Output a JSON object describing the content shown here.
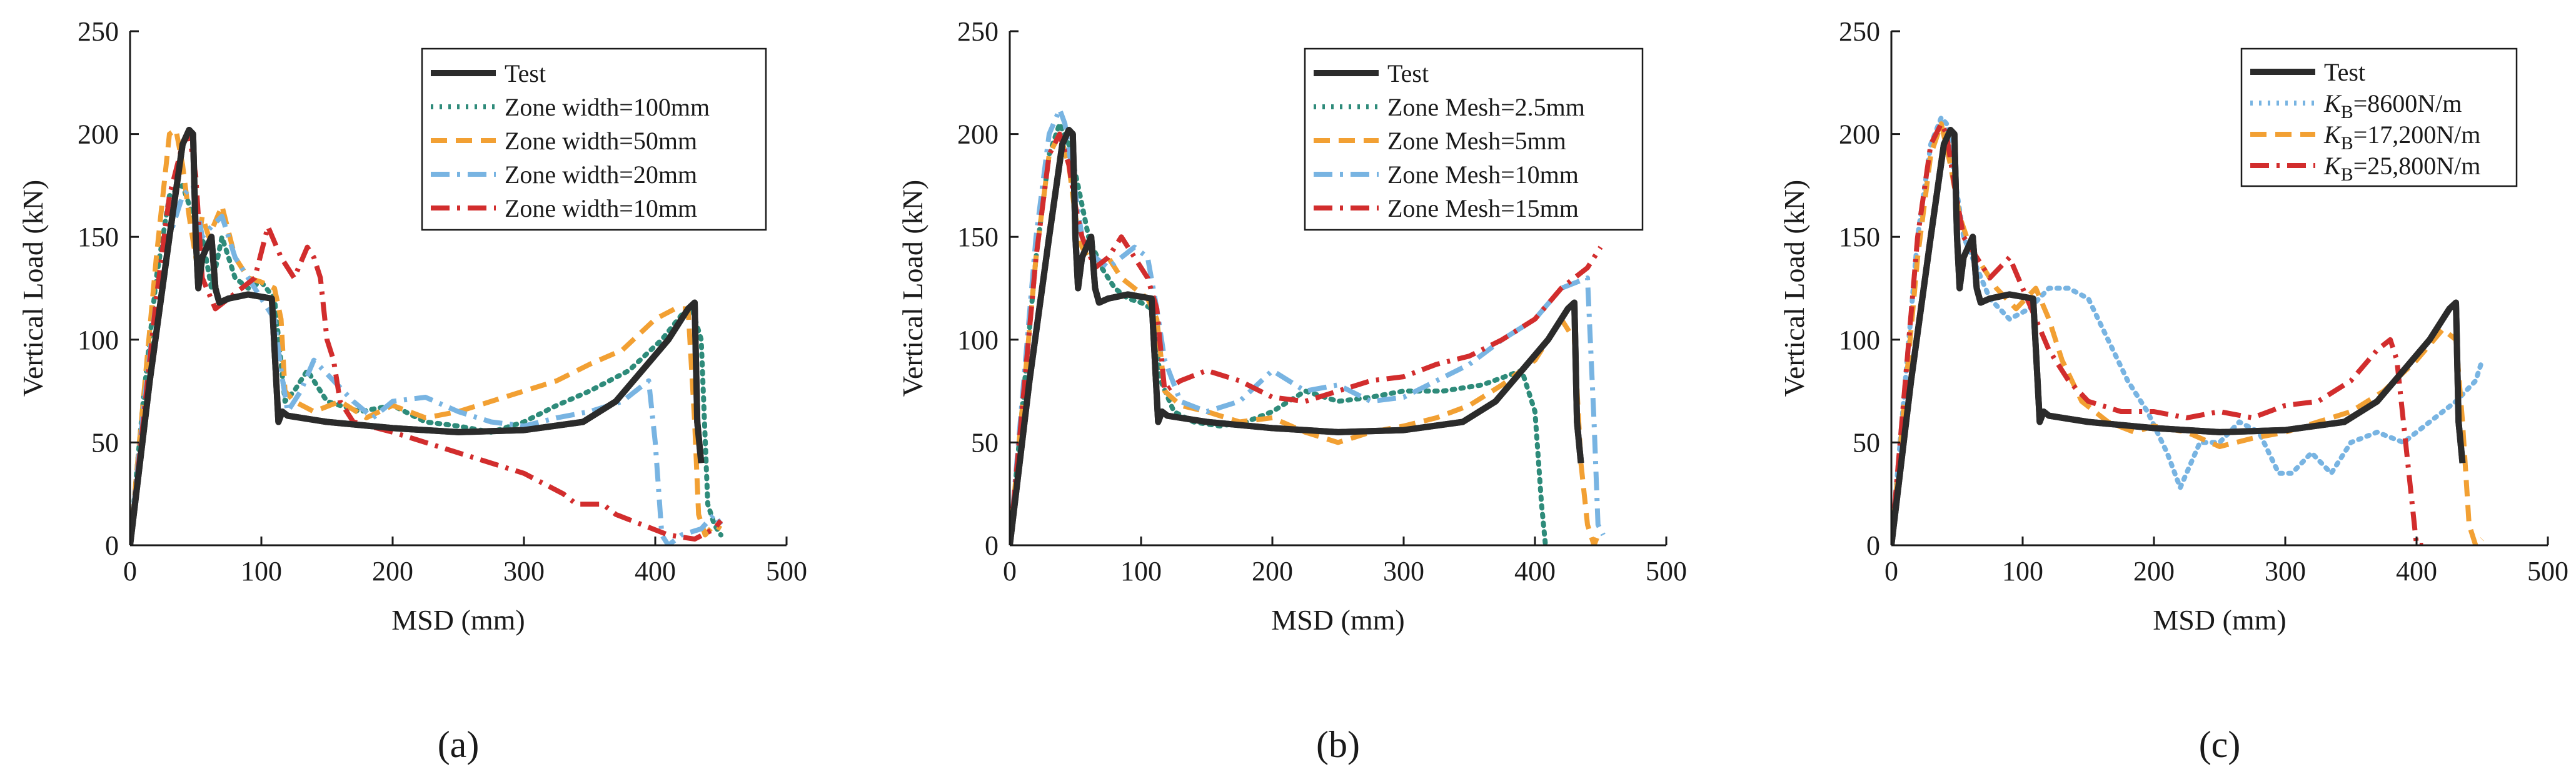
{
  "figure": {
    "colors": {
      "Test": "#2b2b2b",
      "teal": "#2e8b7a",
      "orange": "#f2a033",
      "blue": "#78b4e2",
      "red": "#d22d2d"
    }
  },
  "chart_data": [
    {
      "type": "line",
      "panel_label": "(a)",
      "xlabel": "MSD (mm)",
      "ylabel": "Vertical Load (kN)",
      "xlim": [
        0,
        500
      ],
      "ylim": [
        0,
        250
      ],
      "xticks": [
        0,
        100,
        200,
        300,
        400,
        500
      ],
      "yticks": [
        0,
        50,
        100,
        150,
        200,
        250
      ],
      "legend_position": "top-right",
      "series": [
        {
          "name": "Test",
          "style": "solid",
          "color": "#2b2b2b",
          "x": [
            0,
            15,
            30,
            40,
            45,
            48,
            50,
            52,
            55,
            62,
            65,
            68,
            75,
            90,
            108,
            113,
            116,
            120,
            150,
            200,
            250,
            300,
            345,
            370,
            390,
            410,
            425,
            430,
            432,
            435
          ],
          "y": [
            0,
            80,
            150,
            195,
            202,
            200,
            150,
            125,
            140,
            150,
            125,
            118,
            120,
            122,
            120,
            60,
            65,
            63,
            60,
            57,
            55,
            56,
            60,
            70,
            85,
            100,
            115,
            118,
            60,
            40
          ]
        },
        {
          "name": "Zone width=100mm",
          "style": "dotted",
          "color": "#2e8b7a",
          "x": [
            0,
            10,
            20,
            30,
            40,
            48,
            55,
            62,
            70,
            80,
            90,
            100,
            110,
            118,
            125,
            135,
            150,
            175,
            200,
            225,
            250,
            275,
            300,
            325,
            350,
            380,
            405,
            420,
            428,
            435,
            440,
            445,
            450
          ],
          "y": [
            0,
            70,
            130,
            170,
            175,
            160,
            150,
            125,
            150,
            130,
            125,
            128,
            120,
            70,
            75,
            85,
            70,
            65,
            68,
            60,
            58,
            55,
            60,
            68,
            75,
            85,
            100,
            112,
            115,
            100,
            20,
            10,
            5
          ]
        },
        {
          "name": "Zone width=50mm",
          "style": "dashed",
          "color": "#f2a033",
          "x": [
            0,
            10,
            20,
            30,
            35,
            40,
            45,
            50,
            55,
            60,
            70,
            80,
            90,
            100,
            110,
            115,
            118,
            125,
            140,
            160,
            180,
            200,
            225,
            250,
            275,
            300,
            325,
            350,
            375,
            400,
            415,
            425,
            430,
            433,
            438,
            445,
            450
          ],
          "y": [
            0,
            70,
            140,
            200,
            202,
            185,
            160,
            140,
            160,
            150,
            165,
            140,
            130,
            128,
            125,
            110,
            75,
            70,
            65,
            70,
            62,
            68,
            62,
            65,
            70,
            75,
            80,
            88,
            95,
            110,
            115,
            115,
            60,
            15,
            5,
            10,
            8
          ]
        },
        {
          "name": "Zone width=20mm",
          "style": "dashdot",
          "color": "#78b4e2",
          "x": [
            0,
            10,
            20,
            30,
            40,
            48,
            55,
            62,
            70,
            80,
            90,
            100,
            110,
            115,
            120,
            130,
            140,
            155,
            170,
            185,
            200,
            225,
            250,
            275,
            300,
            325,
            350,
            375,
            395,
            400,
            405,
            410,
            420,
            435,
            445,
            450
          ],
          "y": [
            0,
            65,
            120,
            150,
            170,
            175,
            150,
            155,
            160,
            140,
            130,
            120,
            110,
            85,
            65,
            75,
            90,
            80,
            70,
            62,
            70,
            72,
            65,
            60,
            58,
            62,
            65,
            70,
            80,
            50,
            5,
            0,
            5,
            8,
            15,
            10
          ]
        },
        {
          "name": "Zone width=10mm",
          "style": "dashdot",
          "color": "#d22d2d",
          "x": [
            0,
            10,
            20,
            30,
            40,
            45,
            50,
            55,
            65,
            75,
            85,
            95,
            105,
            115,
            125,
            135,
            140,
            145,
            150,
            155,
            160,
            170,
            200,
            250,
            300,
            330,
            340,
            350,
            360,
            370,
            390,
            410,
            430,
            445,
            450
          ],
          "y": [
            0,
            60,
            120,
            170,
            195,
            200,
            180,
            130,
            115,
            120,
            125,
            130,
            155,
            140,
            130,
            145,
            140,
            130,
            100,
            90,
            70,
            60,
            55,
            45,
            35,
            25,
            20,
            20,
            20,
            15,
            10,
            5,
            3,
            8,
            12
          ]
        }
      ]
    },
    {
      "type": "line",
      "panel_label": "(b)",
      "xlabel": "MSD (mm)",
      "ylabel": "Vertical Load (kN)",
      "xlim": [
        0,
        500
      ],
      "ylim": [
        0,
        250
      ],
      "xticks": [
        0,
        100,
        200,
        300,
        400,
        500
      ],
      "yticks": [
        0,
        50,
        100,
        150,
        200,
        250
      ],
      "legend_position": "top-right",
      "series": [
        {
          "name": "Test",
          "style": "solid",
          "color": "#2b2b2b",
          "x": [
            0,
            15,
            30,
            40,
            45,
            48,
            50,
            52,
            55,
            62,
            65,
            68,
            75,
            90,
            108,
            113,
            116,
            120,
            150,
            200,
            250,
            300,
            345,
            370,
            390,
            410,
            425,
            430,
            432,
            435
          ],
          "y": [
            0,
            80,
            150,
            195,
            202,
            200,
            150,
            125,
            140,
            150,
            125,
            118,
            120,
            122,
            120,
            60,
            65,
            63,
            60,
            57,
            55,
            56,
            60,
            70,
            85,
            100,
            115,
            118,
            60,
            40
          ]
        },
        {
          "name": "Zone Mesh=2.5mm",
          "style": "dotted",
          "color": "#2e8b7a",
          "x": [
            0,
            10,
            20,
            30,
            38,
            45,
            52,
            60,
            70,
            80,
            90,
            100,
            108,
            115,
            125,
            140,
            160,
            180,
            200,
            225,
            250,
            275,
            300,
            330,
            360,
            390,
            400,
            405,
            408
          ],
          "y": [
            0,
            70,
            140,
            190,
            205,
            195,
            175,
            150,
            135,
            125,
            120,
            118,
            115,
            80,
            65,
            60,
            58,
            60,
            65,
            75,
            70,
            72,
            75,
            75,
            78,
            85,
            65,
            20,
            0
          ]
        },
        {
          "name": "Zone Mesh=5mm",
          "style": "dashed",
          "color": "#f2a033",
          "x": [
            0,
            10,
            20,
            30,
            38,
            45,
            50,
            55,
            65,
            75,
            85,
            95,
            105,
            112,
            118,
            130,
            150,
            175,
            200,
            225,
            250,
            275,
            300,
            325,
            350,
            375,
            400,
            420,
            430,
            435,
            440,
            445,
            448
          ],
          "y": [
            0,
            70,
            140,
            190,
            200,
            185,
            160,
            145,
            135,
            140,
            130,
            125,
            120,
            110,
            75,
            68,
            65,
            60,
            62,
            55,
            50,
            55,
            58,
            62,
            68,
            78,
            90,
            110,
            100,
            40,
            10,
            0,
            5
          ]
        },
        {
          "name": "Zone Mesh=10mm",
          "style": "dashdot",
          "color": "#78b4e2",
          "x": [
            0,
            10,
            20,
            30,
            38,
            42,
            48,
            55,
            65,
            75,
            85,
            95,
            105,
            112,
            118,
            130,
            150,
            175,
            200,
            225,
            250,
            275,
            300,
            325,
            350,
            375,
            400,
            420,
            440,
            445,
            448,
            452
          ],
          "y": [
            0,
            75,
            150,
            200,
            212,
            205,
            180,
            150,
            140,
            135,
            140,
            145,
            140,
            115,
            90,
            70,
            65,
            70,
            85,
            75,
            78,
            70,
            72,
            80,
            88,
            100,
            110,
            125,
            130,
            60,
            10,
            5
          ]
        },
        {
          "name": "Zone Mesh=15mm",
          "style": "dashdot",
          "color": "#d22d2d",
          "x": [
            0,
            10,
            20,
            30,
            38,
            45,
            50,
            55,
            65,
            75,
            85,
            95,
            105,
            112,
            118,
            130,
            150,
            175,
            200,
            225,
            250,
            275,
            300,
            325,
            350,
            375,
            400,
            420,
            440,
            450
          ],
          "y": [
            0,
            70,
            140,
            190,
            200,
            185,
            165,
            150,
            135,
            140,
            150,
            140,
            130,
            115,
            75,
            80,
            85,
            80,
            72,
            70,
            75,
            80,
            82,
            88,
            92,
            100,
            110,
            125,
            135,
            145
          ]
        }
      ]
    },
    {
      "type": "line",
      "panel_label": "(c)",
      "xlabel": "MSD (mm)",
      "ylabel": "Vertical Load (kN)",
      "xlim": [
        0,
        500
      ],
      "ylim": [
        0,
        250
      ],
      "xticks": [
        0,
        100,
        200,
        300,
        400,
        500
      ],
      "yticks": [
        0,
        50,
        100,
        150,
        200,
        250
      ],
      "legend_position": "top-left",
      "series": [
        {
          "name": "Test",
          "style": "solid",
          "color": "#2b2b2b",
          "x": [
            0,
            15,
            30,
            40,
            45,
            48,
            50,
            52,
            55,
            62,
            65,
            68,
            75,
            90,
            108,
            113,
            116,
            120,
            150,
            200,
            250,
            300,
            345,
            370,
            390,
            410,
            425,
            430,
            432,
            435
          ],
          "y": [
            0,
            80,
            150,
            195,
            202,
            200,
            150,
            125,
            140,
            150,
            125,
            118,
            120,
            122,
            120,
            60,
            65,
            63,
            60,
            57,
            55,
            56,
            60,
            70,
            85,
            100,
            115,
            118,
            60,
            40
          ]
        },
        {
          "name": "K_B=8600N/m",
          "style": "dotted",
          "color": "#78b4e2",
          "x": [
            0,
            10,
            20,
            30,
            38,
            42,
            48,
            55,
            65,
            75,
            90,
            105,
            120,
            135,
            150,
            165,
            180,
            195,
            210,
            220,
            235,
            250,
            265,
            280,
            295,
            305,
            320,
            335,
            350,
            370,
            390,
            410,
            430,
            445,
            450
          ],
          "y": [
            0,
            75,
            150,
            195,
            208,
            205,
            180,
            150,
            135,
            120,
            110,
            115,
            125,
            125,
            120,
            100,
            80,
            65,
            45,
            28,
            50,
            50,
            60,
            55,
            35,
            35,
            45,
            35,
            50,
            55,
            50,
            60,
            70,
            80,
            90
          ]
        },
        {
          "name": "K_B=17,200N/m",
          "style": "dashed",
          "color": "#f2a033",
          "x": [
            0,
            10,
            20,
            30,
            38,
            45,
            52,
            60,
            70,
            80,
            95,
            110,
            120,
            130,
            145,
            165,
            185,
            200,
            225,
            250,
            275,
            300,
            325,
            350,
            375,
            400,
            420,
            430,
            435,
            440,
            445,
            450
          ],
          "y": [
            0,
            70,
            140,
            190,
            205,
            185,
            160,
            145,
            135,
            125,
            115,
            125,
            110,
            90,
            70,
            60,
            55,
            58,
            55,
            48,
            52,
            55,
            60,
            65,
            75,
            90,
            105,
            100,
            60,
            10,
            0,
            3
          ]
        },
        {
          "name": "K_B=25,800N/m",
          "style": "dashdot",
          "color": "#d22d2d",
          "x": [
            0,
            10,
            20,
            30,
            38,
            42,
            48,
            55,
            65,
            75,
            90,
            100,
            110,
            120,
            135,
            150,
            175,
            200,
            225,
            250,
            275,
            300,
            325,
            350,
            370,
            380,
            385,
            390,
            395,
            400,
            405
          ],
          "y": [
            0,
            75,
            150,
            195,
            205,
            200,
            175,
            150,
            140,
            130,
            140,
            125,
            110,
            95,
            80,
            70,
            65,
            65,
            62,
            65,
            62,
            68,
            70,
            80,
            95,
            100,
            90,
            60,
            30,
            0,
            0
          ]
        }
      ]
    }
  ]
}
